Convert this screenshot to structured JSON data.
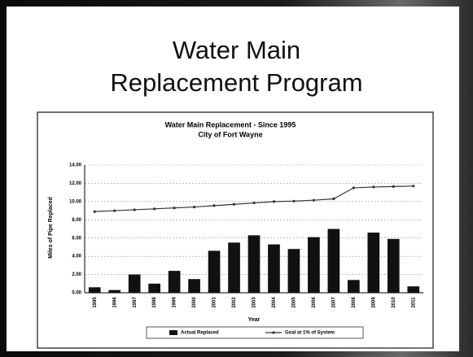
{
  "slide_title": [
    "Water Main",
    "Replacement Program"
  ],
  "chart_data": {
    "type": "bar-line",
    "title": "Water Main Replacement - Since 1995",
    "subtitle": "City of Fort Wayne",
    "x_label": "Year",
    "y_label": "Miles of Pipe Replaced",
    "categories": [
      "1995",
      "1996",
      "1997",
      "1998",
      "1999",
      "2000",
      "2001",
      "2002",
      "2003",
      "2004",
      "2005",
      "2006",
      "2007",
      "2008",
      "2009",
      "2010",
      "2011"
    ],
    "series": [
      {
        "name": "Actual Replaced",
        "type": "bar",
        "color": "#111111",
        "values": [
          0.6,
          0.3,
          2.0,
          1.0,
          2.4,
          1.5,
          4.6,
          5.5,
          6.3,
          5.3,
          4.8,
          6.1,
          7.0,
          1.4,
          6.6,
          5.9,
          0.7
        ]
      },
      {
        "name": "Goal at 1% of System",
        "type": "line",
        "color": "#333333",
        "values": [
          8.9,
          9.0,
          9.1,
          9.2,
          9.3,
          9.4,
          9.55,
          9.7,
          9.85,
          10.0,
          10.05,
          10.15,
          10.3,
          11.5,
          11.6,
          11.65,
          11.7
        ]
      }
    ],
    "ylim": [
      0,
      14
    ],
    "yticks": [
      {
        "value": 0,
        "label": "0.00"
      },
      {
        "value": 2,
        "label": "2.00"
      },
      {
        "value": 4,
        "label": "4.00"
      },
      {
        "value": 6,
        "label": "6.00"
      },
      {
        "value": 8,
        "label": "8.00"
      },
      {
        "value": 10,
        "label": "10.00"
      },
      {
        "value": 12,
        "label": "12.00"
      },
      {
        "value": 14,
        "label": "14.00"
      }
    ],
    "grid": true
  }
}
